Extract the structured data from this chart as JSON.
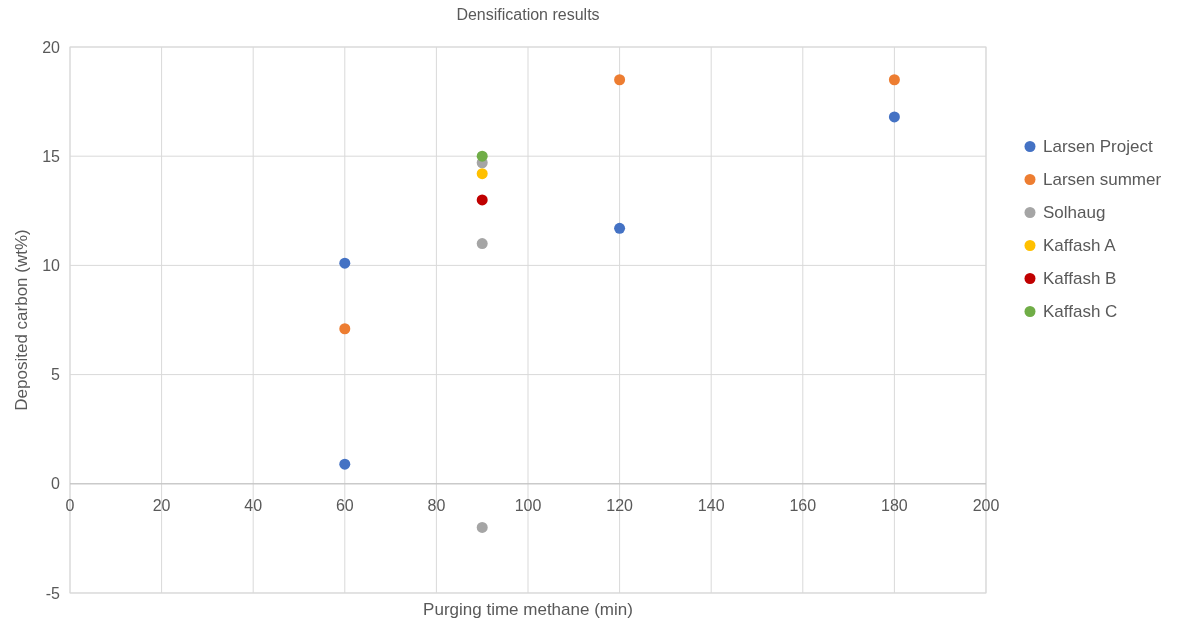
{
  "chart_data": {
    "type": "scatter",
    "title": "Densification results",
    "xlabel": "Purging time methane (min)",
    "ylabel": "Deposited carbon (wt%)",
    "xlim": [
      0,
      200
    ],
    "xticks": [
      0,
      20,
      40,
      60,
      80,
      100,
      120,
      140,
      160,
      180,
      200
    ],
    "ylim": [
      -5,
      20
    ],
    "yticks": [
      -5,
      0,
      5,
      10,
      15,
      20
    ],
    "grid": true,
    "legend": "right",
    "marker": "circle",
    "series": [
      {
        "name": "Larsen Project",
        "color": "#4472c4",
        "x": [
          60,
          60,
          120,
          180
        ],
        "values": [
          10.1,
          0.9,
          11.7,
          16.8
        ]
      },
      {
        "name": "Larsen summer",
        "color": "#ed7d31",
        "x": [
          60,
          120,
          180
        ],
        "values": [
          7.1,
          18.5,
          18.5
        ]
      },
      {
        "name": "Solhaug",
        "color": "#a5a5a5",
        "x": [
          90,
          90,
          90
        ],
        "values": [
          11,
          -2,
          14.7
        ]
      },
      {
        "name": "Kaffash A",
        "color": "#ffc000",
        "x": [
          90
        ],
        "values": [
          14.2
        ]
      },
      {
        "name": "Kaffash B",
        "color": "#c00000",
        "x": [
          90
        ],
        "values": [
          13
        ]
      },
      {
        "name": "Kaffash C",
        "color": "#70ad47",
        "x": [
          90
        ],
        "values": [
          15
        ]
      }
    ]
  }
}
